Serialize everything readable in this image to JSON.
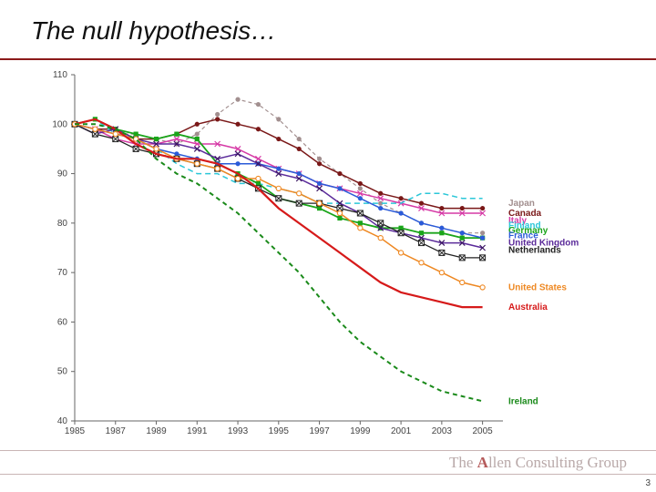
{
  "slide": {
    "title": "The null hypothesis…",
    "page_number": "3",
    "brand_prefix": "The ",
    "brand_accent": "A",
    "brand_rest": "llen Consulting Group"
  },
  "chart": {
    "type": "line",
    "background_color": "#ffffff",
    "plot_border_color": "#888888",
    "axis_line_color": "#666666",
    "tick_font_size": 10,
    "tick_color": "#444444",
    "legend_font_size": 10,
    "legend_font_weight": "bold",
    "xlim": [
      1985,
      2006
    ],
    "ylim": [
      40,
      110
    ],
    "xticks": [
      1985,
      1987,
      1989,
      1991,
      1993,
      1995,
      1997,
      1999,
      2001,
      2003,
      2005
    ],
    "yticks": [
      40,
      50,
      60,
      70,
      80,
      90,
      100,
      110
    ],
    "series": [
      {
        "name": "Japan",
        "color": "#a28f8f",
        "line_width": 1.2,
        "dash": "4 3",
        "marker": "dot",
        "marker_fill": "#a28f8f",
        "legend_y": 84,
        "points": [
          [
            1985,
            100
          ],
          [
            1986,
            99
          ],
          [
            1987,
            98
          ],
          [
            1988,
            98
          ],
          [
            1989,
            97
          ],
          [
            1990,
            96
          ],
          [
            1991,
            98
          ],
          [
            1992,
            102
          ],
          [
            1993,
            105
          ],
          [
            1994,
            104
          ],
          [
            1995,
            101
          ],
          [
            1996,
            97
          ],
          [
            1997,
            93
          ],
          [
            1998,
            90
          ],
          [
            1999,
            87
          ],
          [
            2000,
            84
          ],
          [
            2001,
            82
          ],
          [
            2002,
            80
          ],
          [
            2003,
            79
          ],
          [
            2004,
            78
          ],
          [
            2005,
            78
          ]
        ]
      },
      {
        "name": "Canada",
        "color": "#7a1818",
        "line_width": 1.5,
        "dash": "",
        "marker": "dot",
        "marker_fill": "#7a1818",
        "legend_y": 82,
        "points": [
          [
            1985,
            100
          ],
          [
            1986,
            99
          ],
          [
            1987,
            99
          ],
          [
            1988,
            97
          ],
          [
            1989,
            97
          ],
          [
            1990,
            98
          ],
          [
            1991,
            100
          ],
          [
            1992,
            101
          ],
          [
            1993,
            100
          ],
          [
            1994,
            99
          ],
          [
            1995,
            97
          ],
          [
            1996,
            95
          ],
          [
            1997,
            92
          ],
          [
            1998,
            90
          ],
          [
            1999,
            88
          ],
          [
            2000,
            86
          ],
          [
            2001,
            85
          ],
          [
            2002,
            84
          ],
          [
            2003,
            83
          ],
          [
            2004,
            83
          ],
          [
            2005,
            83
          ]
        ]
      },
      {
        "name": "Italy",
        "color": "#d63aa6",
        "line_width": 1.5,
        "dash": "",
        "marker": "x",
        "marker_fill": "#d63aa6",
        "legend_y": 80.5,
        "points": [
          [
            1985,
            100
          ],
          [
            1986,
            99
          ],
          [
            1987,
            97
          ],
          [
            1988,
            96
          ],
          [
            1989,
            96
          ],
          [
            1990,
            97
          ],
          [
            1991,
            96
          ],
          [
            1992,
            96
          ],
          [
            1993,
            95
          ],
          [
            1994,
            93
          ],
          [
            1995,
            91
          ],
          [
            1996,
            90
          ],
          [
            1997,
            88
          ],
          [
            1998,
            87
          ],
          [
            1999,
            86
          ],
          [
            2000,
            85
          ],
          [
            2001,
            84
          ],
          [
            2002,
            83
          ],
          [
            2003,
            82
          ],
          [
            2004,
            82
          ],
          [
            2005,
            82
          ]
        ]
      },
      {
        "name": "Finland",
        "color": "#2bc7d8",
        "line_width": 1.5,
        "dash": "6 4",
        "marker": "",
        "marker_fill": "#2bc7d8",
        "legend_y": 79.5,
        "points": [
          [
            1985,
            100
          ],
          [
            1986,
            101
          ],
          [
            1987,
            98
          ],
          [
            1988,
            97
          ],
          [
            1989,
            95
          ],
          [
            1990,
            92
          ],
          [
            1991,
            90
          ],
          [
            1992,
            90
          ],
          [
            1993,
            88
          ],
          [
            1994,
            88
          ],
          [
            1995,
            87
          ],
          [
            1996,
            86
          ],
          [
            1997,
            84
          ],
          [
            1998,
            84
          ],
          [
            1999,
            84
          ],
          [
            2000,
            84
          ],
          [
            2001,
            84
          ],
          [
            2002,
            86
          ],
          [
            2003,
            86
          ],
          [
            2004,
            85
          ],
          [
            2005,
            85
          ]
        ]
      },
      {
        "name": "Germany",
        "color": "#1aa51a",
        "line_width": 1.8,
        "dash": "",
        "marker": "square",
        "marker_fill": "#1aa51a",
        "legend_y": 78.5,
        "points": [
          [
            1985,
            100
          ],
          [
            1986,
            101
          ],
          [
            1987,
            99
          ],
          [
            1988,
            98
          ],
          [
            1989,
            97
          ],
          [
            1990,
            98
          ],
          [
            1991,
            97
          ],
          [
            1992,
            92
          ],
          [
            1993,
            90
          ],
          [
            1994,
            88
          ],
          [
            1995,
            85
          ],
          [
            1996,
            84
          ],
          [
            1997,
            83
          ],
          [
            1998,
            81
          ],
          [
            1999,
            80
          ],
          [
            2000,
            79
          ],
          [
            2001,
            79
          ],
          [
            2002,
            78
          ],
          [
            2003,
            78
          ],
          [
            2004,
            77
          ],
          [
            2005,
            77
          ]
        ]
      },
      {
        "name": "France",
        "color": "#2b5bd8",
        "line_width": 1.5,
        "dash": "",
        "marker": "dot",
        "marker_fill": "#2b5bd8",
        "legend_y": 77.5,
        "points": [
          [
            1985,
            100
          ],
          [
            1986,
            99
          ],
          [
            1987,
            98
          ],
          [
            1988,
            97
          ],
          [
            1989,
            95
          ],
          [
            1990,
            94
          ],
          [
            1991,
            93
          ],
          [
            1992,
            92
          ],
          [
            1993,
            92
          ],
          [
            1994,
            92
          ],
          [
            1995,
            91
          ],
          [
            1996,
            90
          ],
          [
            1997,
            88
          ],
          [
            1998,
            87
          ],
          [
            1999,
            85
          ],
          [
            2000,
            83
          ],
          [
            2001,
            82
          ],
          [
            2002,
            80
          ],
          [
            2003,
            79
          ],
          [
            2004,
            78
          ],
          [
            2005,
            77
          ]
        ]
      },
      {
        "name": "United Kingdom",
        "color": "#5b2b9a",
        "line_width": 1.5,
        "dash": "",
        "marker": "x",
        "marker_fill": "#3a1562",
        "legend_y": 76,
        "points": [
          [
            1985,
            100
          ],
          [
            1986,
            98
          ],
          [
            1987,
            99
          ],
          [
            1988,
            97
          ],
          [
            1989,
            96
          ],
          [
            1990,
            96
          ],
          [
            1991,
            95
          ],
          [
            1992,
            93
          ],
          [
            1993,
            94
          ],
          [
            1994,
            92
          ],
          [
            1995,
            90
          ],
          [
            1996,
            89
          ],
          [
            1997,
            87
          ],
          [
            1998,
            84
          ],
          [
            1999,
            82
          ],
          [
            2000,
            79
          ],
          [
            2001,
            78
          ],
          [
            2002,
            77
          ],
          [
            2003,
            76
          ],
          [
            2004,
            76
          ],
          [
            2005,
            75
          ]
        ]
      },
      {
        "name": "Netherlands",
        "color": "#222222",
        "line_width": 1.3,
        "dash": "",
        "marker": "xbox",
        "marker_fill": "#222222",
        "legend_y": 74.5,
        "points": [
          [
            1985,
            100
          ],
          [
            1986,
            98
          ],
          [
            1987,
            97
          ],
          [
            1988,
            95
          ],
          [
            1989,
            94
          ],
          [
            1990,
            93
          ],
          [
            1991,
            92
          ],
          [
            1992,
            91
          ],
          [
            1993,
            89
          ],
          [
            1994,
            87
          ],
          [
            1995,
            85
          ],
          [
            1996,
            84
          ],
          [
            1997,
            84
          ],
          [
            1998,
            83
          ],
          [
            1999,
            82
          ],
          [
            2000,
            80
          ],
          [
            2001,
            78
          ],
          [
            2002,
            76
          ],
          [
            2003,
            74
          ],
          [
            2004,
            73
          ],
          [
            2005,
            73
          ]
        ]
      },
      {
        "name": "United States",
        "color": "#ee8822",
        "line_width": 1.5,
        "dash": "",
        "marker": "circle-open",
        "marker_fill": "#ee8822",
        "legend_y": 67,
        "points": [
          [
            1985,
            100
          ],
          [
            1986,
            99
          ],
          [
            1987,
            98
          ],
          [
            1988,
            97
          ],
          [
            1989,
            95
          ],
          [
            1990,
            93
          ],
          [
            1991,
            92
          ],
          [
            1992,
            91
          ],
          [
            1993,
            89
          ],
          [
            1994,
            89
          ],
          [
            1995,
            87
          ],
          [
            1996,
            86
          ],
          [
            1997,
            84
          ],
          [
            1998,
            82
          ],
          [
            1999,
            79
          ],
          [
            2000,
            77
          ],
          [
            2001,
            74
          ],
          [
            2002,
            72
          ],
          [
            2003,
            70
          ],
          [
            2004,
            68
          ],
          [
            2005,
            67
          ]
        ]
      },
      {
        "name": "Australia",
        "color": "#d61a1a",
        "line_width": 2.2,
        "dash": "",
        "marker": "",
        "marker_fill": "#d61a1a",
        "legend_y": 63,
        "points": [
          [
            1985,
            100
          ],
          [
            1986,
            101
          ],
          [
            1987,
            99
          ],
          [
            1988,
            96
          ],
          [
            1989,
            94
          ],
          [
            1990,
            93
          ],
          [
            1991,
            93
          ],
          [
            1992,
            92
          ],
          [
            1993,
            90
          ],
          [
            1994,
            87
          ],
          [
            1995,
            83
          ],
          [
            1996,
            80
          ],
          [
            1997,
            77
          ],
          [
            1998,
            74
          ],
          [
            1999,
            71
          ],
          [
            2000,
            68
          ],
          [
            2001,
            66
          ],
          [
            2002,
            65
          ],
          [
            2003,
            64
          ],
          [
            2004,
            63
          ],
          [
            2005,
            63
          ]
        ]
      },
      {
        "name": "Ireland",
        "color": "#1a8a1a",
        "line_width": 2.0,
        "dash": "5 4",
        "marker": "",
        "marker_fill": "#1a8a1a",
        "legend_y": 44,
        "points": [
          [
            1985,
            100
          ],
          [
            1986,
            100
          ],
          [
            1987,
            99
          ],
          [
            1988,
            97
          ],
          [
            1989,
            93
          ],
          [
            1990,
            90
          ],
          [
            1991,
            88
          ],
          [
            1992,
            85
          ],
          [
            1993,
            82
          ],
          [
            1994,
            78
          ],
          [
            1995,
            74
          ],
          [
            1996,
            70
          ],
          [
            1997,
            65
          ],
          [
            1998,
            60
          ],
          [
            1999,
            56
          ],
          [
            2000,
            53
          ],
          [
            2001,
            50
          ],
          [
            2002,
            48
          ],
          [
            2003,
            46
          ],
          [
            2004,
            45
          ],
          [
            2005,
            44
          ]
        ]
      }
    ]
  }
}
